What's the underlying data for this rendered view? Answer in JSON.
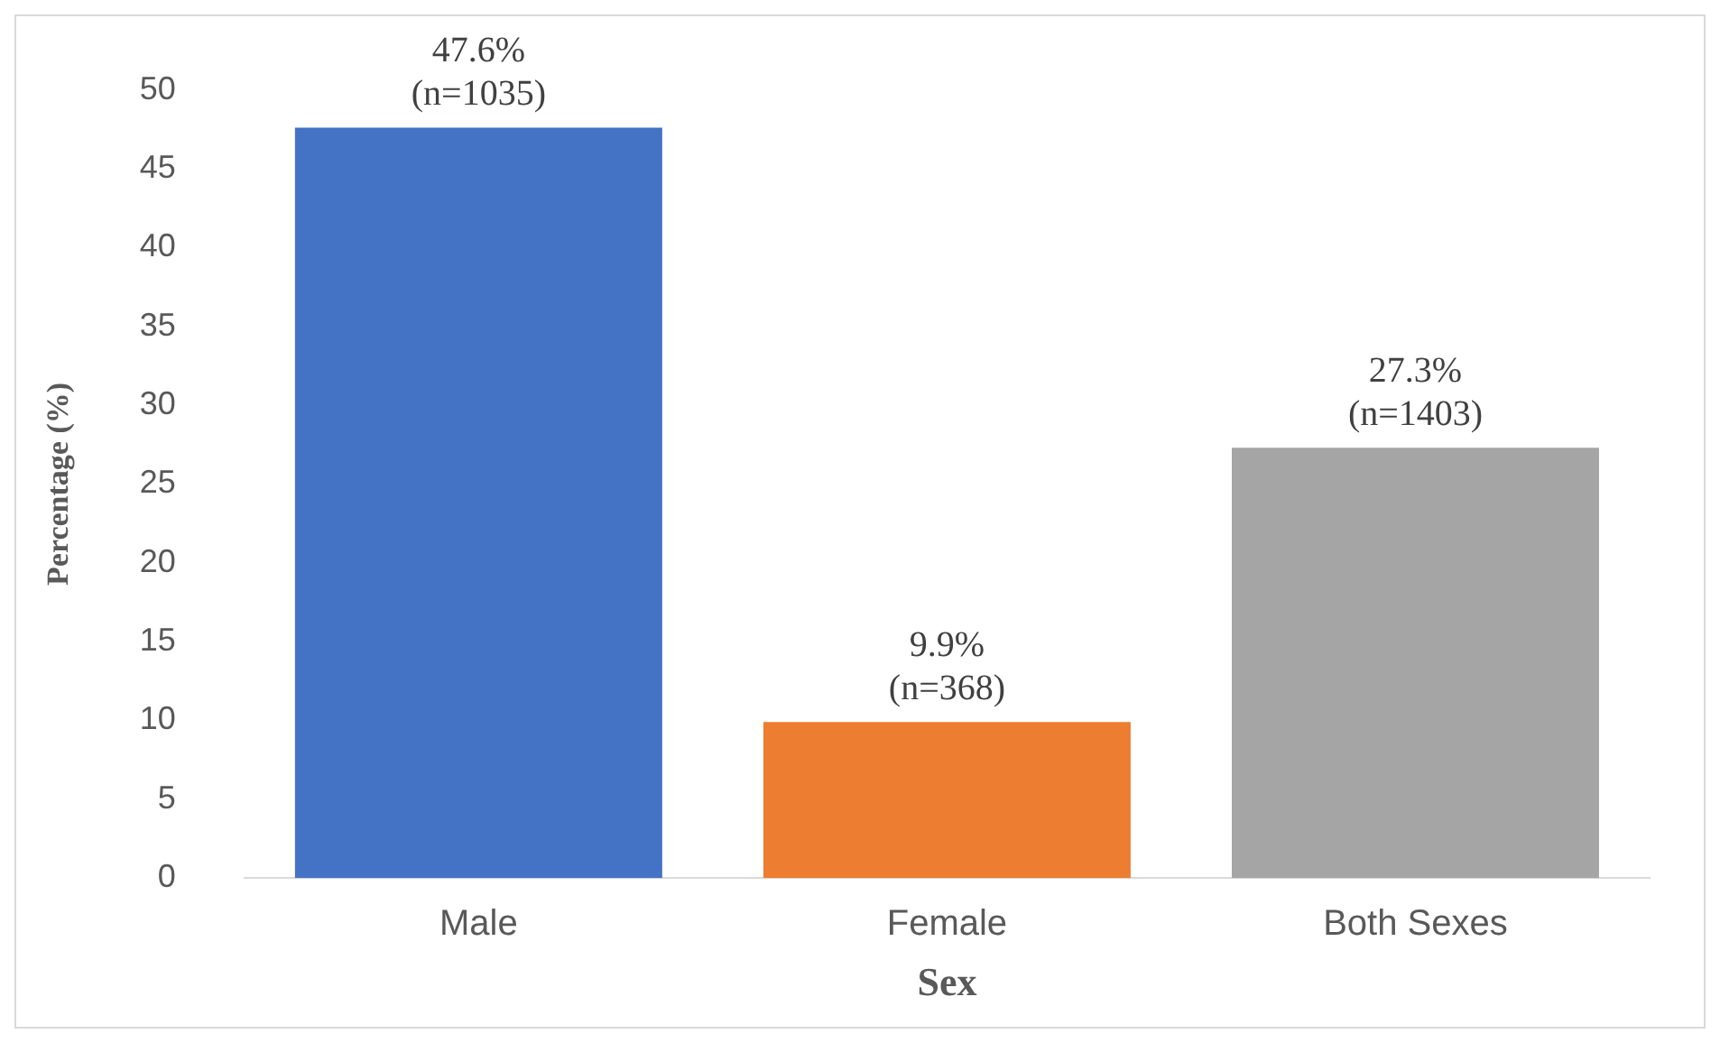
{
  "chart_data": {
    "type": "bar",
    "xlabel": "Sex",
    "ylabel": "Percentage (%)",
    "categories": [
      "Male",
      "Female",
      "Both Sexes"
    ],
    "values": [
      47.6,
      9.9,
      27.3
    ],
    "colors": [
      "#4472c4",
      "#ed7d31",
      "#a5a5a5"
    ],
    "value_labels": [
      "47.6%\n(n=1035)",
      "9.9%\n(n=368)",
      "27.3%\n(n=1403)"
    ],
    "ylim": [
      0,
      50
    ],
    "yticks": [
      0,
      5,
      10,
      15,
      20,
      25,
      30,
      35,
      40,
      45,
      50
    ],
    "grid": false,
    "legend": false
  }
}
